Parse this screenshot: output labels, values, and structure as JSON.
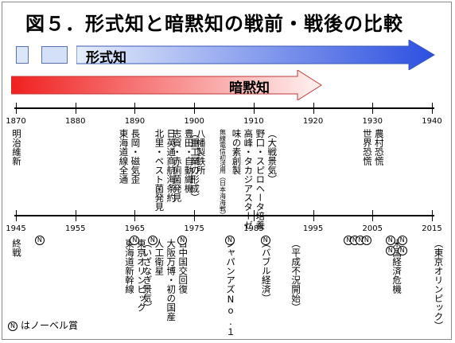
{
  "title": "図５．形式知と暗黙知の戦前・戦後の比較",
  "arrows": {
    "explicit": "形式知",
    "tacit": "暗黙知"
  },
  "colors": {
    "explicit_start": "#e6eefb",
    "explicit_end": "#2c4fe0",
    "tacit_start": "#f02020",
    "tacit_end": "#fff2f2"
  },
  "upper_axis": {
    "years": [
      "1870",
      "1880",
      "1890",
      "1900",
      "1910",
      "1920",
      "1930",
      "1940"
    ],
    "events": [
      {
        "year_pos": 1870,
        "text": "明治維新"
      },
      {
        "year_pos": 1888,
        "text": "東海道線全通"
      },
      {
        "year_pos": 1890,
        "text": "長岡・磁気歪"
      },
      {
        "year_pos": 1894,
        "text": "北里・ペスト菌発見"
      },
      {
        "year_pos": 1896,
        "text": "日英通商航海条約"
      },
      {
        "year_pos": 1897,
        "text": "志賀・赤痢菌発見"
      },
      {
        "year_pos": 1899,
        "text": "豊田・自動織機"
      },
      {
        "year_pos": 1900,
        "text": "（重工業の形成）"
      },
      {
        "year_pos": 1901,
        "text": "八幡製鉄所"
      },
      {
        "year_pos": 1905,
        "text": "無線電信初活用（日本海海戦）"
      },
      {
        "year_pos": 1907,
        "text": "味の素創製"
      },
      {
        "year_pos": 1909,
        "text": "高峰・タカジアスターゼ"
      },
      {
        "year_pos": 1911,
        "text": "野口・スピロヘータ培養"
      },
      {
        "year_pos": 1913,
        "text": "（大戦景気）"
      },
      {
        "year_pos": 1929,
        "text": "世界恐慌"
      },
      {
        "year_pos": 1931,
        "text": "農村恐慌"
      }
    ]
  },
  "lower_axis": {
    "years": [
      "1945",
      "1955",
      "1965",
      "1975",
      "1985",
      "1995",
      "2005",
      "2015"
    ],
    "events": [
      {
        "year_pos": 1945,
        "text": "終戦"
      },
      {
        "year_pos": 1964,
        "text": "東海道新幹線"
      },
      {
        "year_pos": 1966,
        "text": "東京オリンピック"
      },
      {
        "year_pos": 1967,
        "text": "（いざなぎ景気）"
      },
      {
        "year_pos": 1969,
        "text": "人工衛星"
      },
      {
        "year_pos": 1971,
        "text": "大阪万博・初の国産"
      },
      {
        "year_pos": 1973,
        "text": "日中国交回復"
      },
      {
        "year_pos": 1981,
        "text": "ジャパンアズNo.１"
      },
      {
        "year_pos": 1987,
        "text": "（バブル経済）"
      },
      {
        "year_pos": 1992,
        "text": "（平成不況開始）"
      },
      {
        "year_pos": 2009,
        "text": "米国経済危機"
      },
      {
        "year_pos": 2016,
        "text": "（東京オリンピック）"
      }
    ],
    "nobel_marks": [
      1949,
      1965,
      1968,
      1973,
      1981,
      1987,
      2001,
      2002,
      2003,
      2004,
      2008,
      2008,
      2010,
      2010
    ]
  },
  "legend": {
    "symbol": "N",
    "text": "はノーベル賞"
  }
}
